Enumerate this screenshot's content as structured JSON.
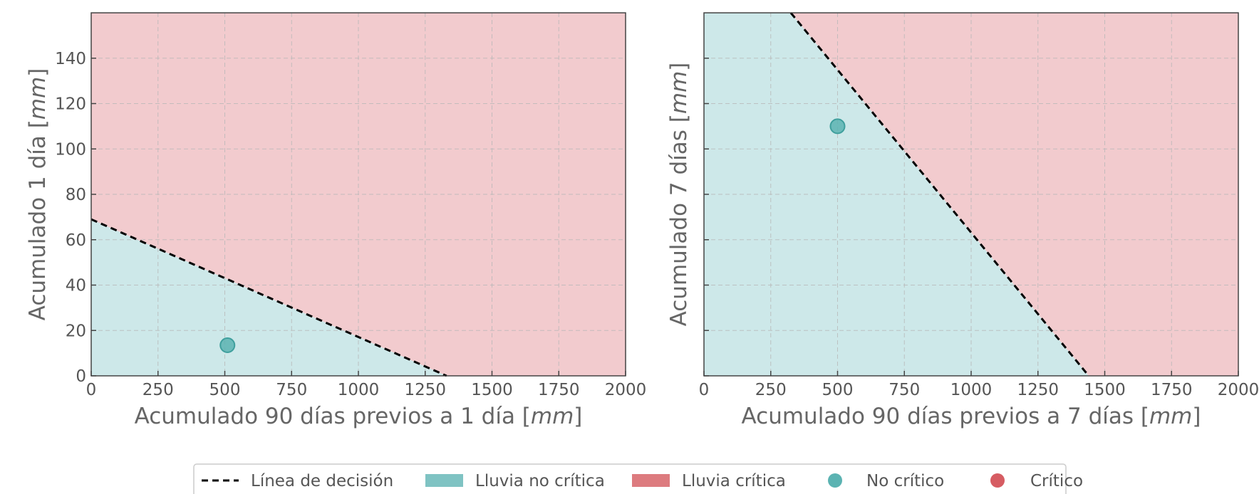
{
  "chart_data": [
    {
      "type": "scatter",
      "title": "",
      "xlabel": {
        "text": "Acumulado 90 días previos a 1 día [",
        "unit": "mm",
        "close": "]"
      },
      "ylabel": {
        "text": "Acumulado 1 día [",
        "unit": "mm",
        "close": "]"
      },
      "xlim": [
        0,
        2000
      ],
      "ylim": [
        0,
        160
      ],
      "xticks": [
        "0",
        "250",
        "500",
        "750",
        "1000",
        "1250",
        "1500",
        "1750",
        "2000"
      ],
      "yticks": [
        "0",
        "20",
        "40",
        "60",
        "80",
        "100",
        "120",
        "140"
      ],
      "xtick_values": [
        0,
        250,
        500,
        750,
        1000,
        1250,
        1500,
        1750,
        2000
      ],
      "ytick_values": [
        0,
        20,
        40,
        60,
        80,
        100,
        120,
        140
      ],
      "grid": true,
      "decision_line": [
        [
          0,
          69
        ],
        [
          1330,
          0
        ]
      ],
      "points": [
        {
          "x": 510,
          "y": 13.5,
          "class": "No crítico"
        }
      ]
    },
    {
      "type": "scatter",
      "title": "",
      "xlabel": {
        "text": "Acumulado 90 días previos a 7 días [",
        "unit": "mm",
        "close": "]"
      },
      "ylabel": {
        "text": "Acumulado 7 días [",
        "unit": "mm",
        "close": "]"
      },
      "xlim": [
        0,
        2000
      ],
      "ylim": [
        0,
        160
      ],
      "xticks": [
        "0",
        "250",
        "500",
        "750",
        "1000",
        "1250",
        "1500",
        "1750",
        "2000"
      ],
      "yticks": [],
      "xtick_values": [
        0,
        250,
        500,
        750,
        1000,
        1250,
        1500,
        1750,
        2000
      ],
      "ytick_values": [
        0,
        20,
        40,
        60,
        80,
        100,
        120,
        140
      ],
      "grid": true,
      "decision_line": [
        [
          325,
          160
        ],
        [
          1440,
          0
        ]
      ],
      "points": [
        {
          "x": 500,
          "y": 110,
          "class": "No crítico"
        }
      ]
    }
  ],
  "legend": {
    "placement": "bottom-center",
    "items": [
      {
        "label": "Línea de decisión",
        "kind": "dashed-line"
      },
      {
        "label": "Lluvia no crítica",
        "kind": "patch"
      },
      {
        "label": "Lluvia crítica",
        "kind": "patch"
      },
      {
        "label": "No crítico",
        "kind": "marker"
      },
      {
        "label": "Crítico",
        "kind": "marker"
      }
    ]
  },
  "colors": {
    "no_critica_region": "#cde8e9",
    "critica_region": "#f2cbce",
    "no_critica_patch": "#7fc3c3",
    "critica_patch": "#dd7b7f",
    "no_critico_marker": "#5bb3b2",
    "critico_marker": "#d65c62",
    "decision_line": "#000000"
  }
}
